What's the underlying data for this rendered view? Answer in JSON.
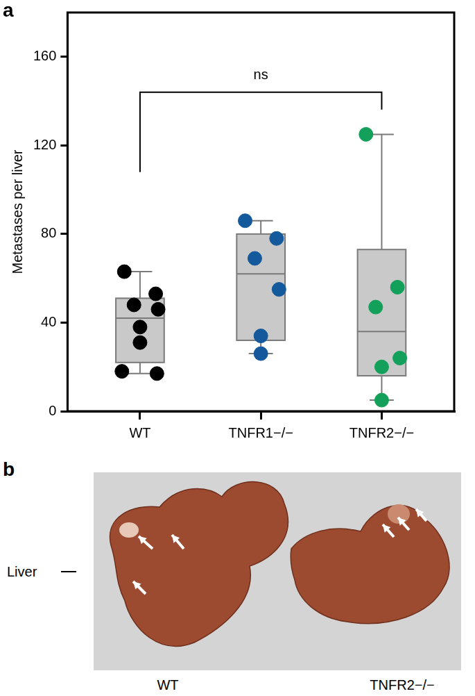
{
  "chart_data": {
    "type": "box",
    "panel_label": "a",
    "y_label": "Metastases per liver",
    "categories": [
      "WT",
      "TNFR1−/−",
      "TNFR2−/−"
    ],
    "points": [
      [
        63,
        53,
        48,
        46,
        38,
        31,
        18,
        17
      ],
      [
        86,
        78,
        69,
        55,
        34,
        26
      ],
      [
        125,
        56,
        47,
        24,
        20,
        5
      ]
    ],
    "boxes": [
      {
        "min": 17,
        "q1": 22,
        "median": 42,
        "q3": 51,
        "max": 63
      },
      {
        "min": 26,
        "q1": 32,
        "median": 62,
        "q3": 80,
        "max": 86
      },
      {
        "min": 5,
        "q1": 16,
        "median": 36,
        "q3": 73,
        "max": 125
      }
    ],
    "colors": [
      "#000000",
      "#14599b",
      "#13a05a"
    ],
    "color": "#c9c9c9",
    "ylim": [
      0,
      180
    ],
    "yticks": [
      0,
      40,
      80,
      120,
      160
    ],
    "grid": false,
    "annotations": [
      {
        "text": "ns",
        "from": "WT",
        "to": "TNFR2−/−",
        "y": 144
      }
    ]
  },
  "photo_panel": {
    "label": "b",
    "row_label": "Liver",
    "captions": [
      "WT",
      "TNFR2−/−"
    ]
  }
}
